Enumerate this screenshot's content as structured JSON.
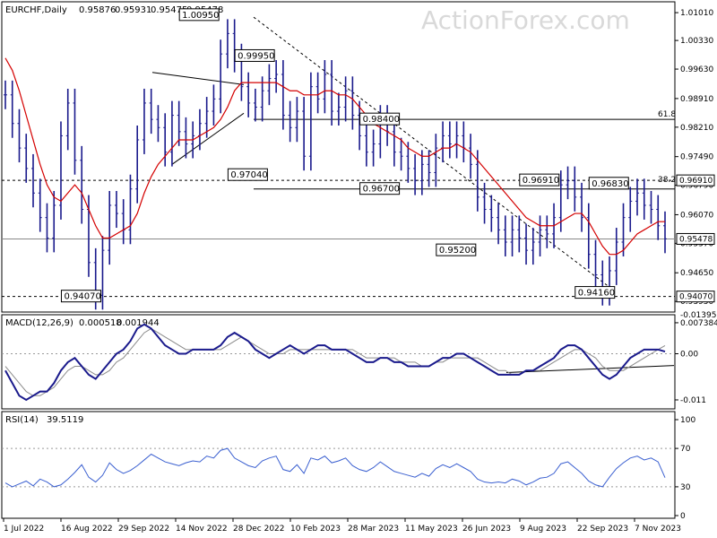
{
  "chart_data": [
    {
      "type": "bar",
      "title": "EURCHF,Daily",
      "ohlc": [
        "0.95876",
        "0.95931",
        "0.95475",
        "0.95478"
      ],
      "ylim": [
        0.938,
        1.011
      ],
      "price_ticks": [
        "1.01010",
        "1.00330",
        "0.99630",
        "0.98910",
        "0.98210",
        "0.97490",
        "0.96790",
        "0.96070",
        "0.95370",
        "0.94650",
        "0.93950"
      ],
      "date_ticks": [
        "1 Jul 2022",
        "16 Aug 2022",
        "29 Sep 2022",
        "14 Nov 2022",
        "28 Dec 2022",
        "10 Feb 2023",
        "28 Mar 2023",
        "11 May 2023",
        "26 Jun 2023",
        "9 Aug 2023",
        "22 Sep 2023",
        "7 Nov 2023"
      ],
      "x_range": [
        "1 Jul 2022",
        "21 Nov 2023"
      ],
      "series": [
        {
          "name": "close",
          "values": [
            0.99,
            0.983,
            0.977,
            0.972,
            0.966,
            0.96,
            0.955,
            0.963,
            0.98,
            0.988,
            0.974,
            0.962,
            0.949,
            0.941,
            0.952,
            0.963,
            0.961,
            0.957,
            0.967,
            0.979,
            0.988,
            0.984,
            0.982,
            0.976,
            0.985,
            0.981,
            0.978,
            0.98,
            0.983,
            0.986,
            0.989,
            1.0,
            1.005,
            0.999,
            0.992,
            0.988,
            0.987,
            0.991,
            0.994,
            0.995,
            0.985,
            0.982,
            0.986,
            0.975,
            0.992,
            0.989,
            0.995,
            0.986,
            0.987,
            0.991,
            0.985,
            0.98,
            0.976,
            0.978,
            0.984,
            0.981,
            0.976,
            0.975,
            0.972,
            0.969,
            0.973,
            0.971,
            0.977,
            0.98,
            0.978,
            0.98,
            0.977,
            0.973,
            0.965,
            0.962,
            0.96,
            0.957,
            0.954,
            0.957,
            0.955,
            0.952,
            0.954,
            0.957,
            0.956,
            0.96,
            0.968,
            0.969,
            0.965,
            0.96,
            0.951,
            0.946,
            0.942,
            0.947,
            0.954,
            0.96,
            0.964,
            0.966,
            0.963,
            0.962,
            0.958,
            0.9548
          ]
        },
        {
          "name": "MA",
          "values": [
            0.999,
            0.996,
            0.991,
            0.985,
            0.979,
            0.973,
            0.968,
            0.965,
            0.964,
            0.966,
            0.968,
            0.966,
            0.962,
            0.958,
            0.955,
            0.955,
            0.956,
            0.957,
            0.958,
            0.961,
            0.966,
            0.97,
            0.973,
            0.975,
            0.977,
            0.979,
            0.979,
            0.979,
            0.98,
            0.981,
            0.982,
            0.984,
            0.987,
            0.991,
            0.993,
            0.993,
            0.993,
            0.993,
            0.993,
            0.993,
            0.992,
            0.991,
            0.991,
            0.99,
            0.99,
            0.99,
            0.991,
            0.991,
            0.99,
            0.99,
            0.989,
            0.987,
            0.985,
            0.983,
            0.982,
            0.981,
            0.98,
            0.979,
            0.977,
            0.976,
            0.975,
            0.975,
            0.976,
            0.977,
            0.977,
            0.978,
            0.977,
            0.976,
            0.974,
            0.972,
            0.97,
            0.968,
            0.966,
            0.964,
            0.962,
            0.96,
            0.959,
            0.958,
            0.958,
            0.958,
            0.959,
            0.96,
            0.961,
            0.961,
            0.959,
            0.956,
            0.953,
            0.951,
            0.951,
            0.952,
            0.954,
            0.956,
            0.957,
            0.958,
            0.959,
            0.959
          ]
        }
      ],
      "levels": [
        {
          "value": 0.984,
          "label": "0.98400"
        },
        {
          "value": 0.9691,
          "label": "0.96910"
        },
        {
          "value": 0.967,
          "label": "0.96700"
        },
        {
          "value": 0.95478,
          "label": "0.95478"
        },
        {
          "value": 0.9407,
          "label": "0.94070"
        }
      ],
      "fib_labels": [
        "61.8",
        "38.2"
      ],
      "annotations": [
        {
          "date_idx": 31,
          "value": 1.0095,
          "label": "1.00950"
        },
        {
          "date_idx": 39,
          "value": 0.9995,
          "label": "0.99950"
        },
        {
          "date_idx": 38,
          "value": 0.9704,
          "label": "0.97040"
        },
        {
          "date_idx": 57,
          "value": 0.984,
          "label": "0.98400"
        },
        {
          "date_idx": 57,
          "value": 0.967,
          "label": "0.96700"
        },
        {
          "date_idx": 68,
          "value": 0.952,
          "label": "0.95200"
        },
        {
          "date_idx": 80,
          "value": 0.9691,
          "label": "0.96910"
        },
        {
          "date_idx": 88,
          "value": 0.9416,
          "label": "0.94160"
        },
        {
          "date_idx": 90,
          "value": 0.9683,
          "label": "0.96830"
        },
        {
          "date_idx": 14,
          "value": 0.9407,
          "label": "0.94070"
        }
      ],
      "right_labels": [
        "0.96910",
        "0.95478",
        "0.94070"
      ],
      "colors": {
        "bars": "#1a1a8c",
        "ma": "#d40000",
        "lines": "#000000"
      }
    },
    {
      "type": "line",
      "title": "MACD(12,26,9)",
      "values_text": [
        "0.000518",
        "0.001944"
      ],
      "ylim": [
        -0.0125,
        0.0078
      ],
      "ticks": [
        "0.007384",
        "0.00",
        "-0.011"
      ],
      "tick_values": [
        0.007384,
        0.0,
        -0.011
      ],
      "extra_tick": "-0.013950",
      "series": [
        {
          "name": "macd",
          "values": [
            -0.004,
            -0.007,
            -0.01,
            -0.011,
            -0.01,
            -0.009,
            -0.009,
            -0.007,
            -0.004,
            -0.002,
            -0.001,
            -0.003,
            -0.005,
            -0.006,
            -0.004,
            -0.002,
            0.0,
            0.001,
            0.003,
            0.006,
            0.007,
            0.006,
            0.004,
            0.002,
            0.001,
            0.0,
            0.0,
            0.001,
            0.001,
            0.001,
            0.001,
            0.002,
            0.004,
            0.005,
            0.004,
            0.003,
            0.001,
            0.0,
            -0.001,
            0.0,
            0.001,
            0.002,
            0.001,
            0.0,
            0.001,
            0.002,
            0.002,
            0.001,
            0.001,
            0.001,
            0.0,
            -0.001,
            -0.002,
            -0.002,
            -0.001,
            -0.001,
            -0.002,
            -0.002,
            -0.003,
            -0.003,
            -0.003,
            -0.003,
            -0.002,
            -0.001,
            -0.001,
            0.0,
            0.0,
            -0.001,
            -0.002,
            -0.003,
            -0.004,
            -0.005,
            -0.005,
            -0.005,
            -0.005,
            -0.004,
            -0.004,
            -0.003,
            -0.002,
            -0.001,
            0.001,
            0.002,
            0.002,
            0.001,
            -0.001,
            -0.003,
            -0.005,
            -0.006,
            -0.005,
            -0.003,
            -0.001,
            0.0,
            0.001,
            0.001,
            0.001,
            0.000518
          ]
        },
        {
          "name": "signal",
          "values": [
            -0.003,
            -0.005,
            -0.007,
            -0.009,
            -0.01,
            -0.01,
            -0.009,
            -0.008,
            -0.006,
            -0.004,
            -0.003,
            -0.003,
            -0.004,
            -0.005,
            -0.005,
            -0.004,
            -0.002,
            -0.001,
            0.001,
            0.003,
            0.005,
            0.006,
            0.005,
            0.004,
            0.003,
            0.002,
            0.001,
            0.001,
            0.001,
            0.001,
            0.001,
            0.001,
            0.002,
            0.003,
            0.004,
            0.003,
            0.002,
            0.001,
            0.0,
            0.0,
            0.0,
            0.001,
            0.001,
            0.001,
            0.001,
            0.001,
            0.001,
            0.001,
            0.001,
            0.001,
            0.001,
            0.0,
            -0.001,
            -0.001,
            -0.001,
            -0.001,
            -0.001,
            -0.002,
            -0.002,
            -0.002,
            -0.003,
            -0.003,
            -0.002,
            -0.002,
            -0.001,
            -0.001,
            -0.001,
            -0.001,
            -0.001,
            -0.002,
            -0.003,
            -0.004,
            -0.004,
            -0.005,
            -0.005,
            -0.004,
            -0.004,
            -0.004,
            -0.003,
            -0.002,
            -0.001,
            0.0,
            0.001,
            0.001,
            0.0,
            -0.001,
            -0.003,
            -0.004,
            -0.004,
            -0.004,
            -0.003,
            -0.002,
            -0.001,
            0.0,
            0.001,
            0.001944
          ]
        }
      ],
      "colors": {
        "macd": "#1a1a8c",
        "signal": "#8a8a8a"
      }
    },
    {
      "type": "line",
      "title": "RSI(14)",
      "values_text": [
        "39.5119"
      ],
      "ylim": [
        0,
        100
      ],
      "ticks": [
        "100",
        "70",
        "30",
        "0"
      ],
      "tick_values": [
        100,
        70,
        30,
        0
      ],
      "series": [
        {
          "name": "RSI",
          "values": [
            34,
            30,
            33,
            36,
            31,
            38,
            35,
            30,
            32,
            38,
            45,
            53,
            40,
            35,
            42,
            55,
            48,
            44,
            47,
            52,
            58,
            64,
            60,
            56,
            54,
            52,
            55,
            57,
            56,
            62,
            60,
            68,
            70,
            60,
            56,
            52,
            50,
            57,
            60,
            62,
            48,
            46,
            53,
            44,
            60,
            58,
            62,
            55,
            57,
            60,
            52,
            48,
            46,
            50,
            56,
            51,
            46,
            44,
            42,
            40,
            44,
            41,
            49,
            53,
            50,
            54,
            50,
            46,
            38,
            35,
            34,
            35,
            34,
            38,
            36,
            32,
            35,
            39,
            40,
            44,
            54,
            56,
            50,
            44,
            36,
            32,
            30,
            40,
            49,
            55,
            60,
            62,
            58,
            60,
            56,
            39.5
          ]
        }
      ],
      "colors": {
        "rsi": "#3a5fd0"
      }
    }
  ],
  "watermark": "ActionForex.com"
}
